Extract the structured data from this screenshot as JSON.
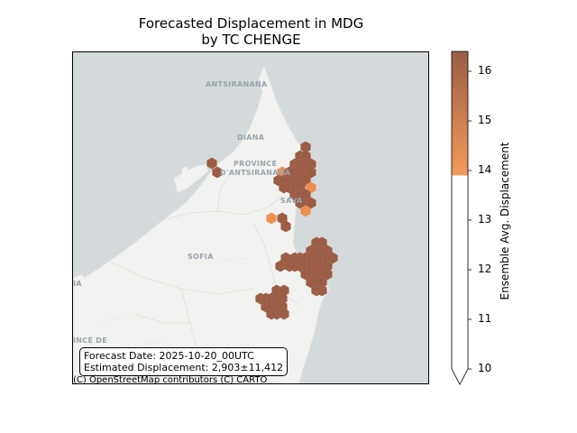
{
  "title": {
    "line1": "Forecasted Displacement in MDG",
    "line2": "by TC CHENGE"
  },
  "map": {
    "colors": {
      "ocean": "#d4dadc",
      "land": "#f2f2f0",
      "hex_dark": "#9b5d45",
      "hex_light": "#ee8f4e"
    },
    "place_labels": {
      "antsiranana": "ANTSIRANANA",
      "diana": "DIANA",
      "province_line1": "PROVINCE",
      "province_line2": "D'ANTSIRANANA",
      "sava": "SAVA",
      "sofia": "SOFIA",
      "mahajanga_fragment": "INCE DE",
      "left_fragment": "IA"
    },
    "info_box": {
      "forecast_date": "Forecast Date: 2025-10-20_00UTC",
      "estimated_displacement": "Estimated Displacement: 2,903±11,412"
    },
    "attribution": "(C) OpenStreetMap contributors (C) CARTO"
  },
  "colorbar": {
    "label": "Ensemble Avg. Displacement",
    "ticks": [
      "10",
      "11",
      "12",
      "13",
      "14",
      "15",
      "16"
    ],
    "range": [
      10,
      16.4
    ],
    "extend": "min",
    "stops": [
      {
        "value": 13.9,
        "color": "#f39a5a"
      },
      {
        "value": 16.4,
        "color": "#9b5d45"
      }
    ]
  }
}
